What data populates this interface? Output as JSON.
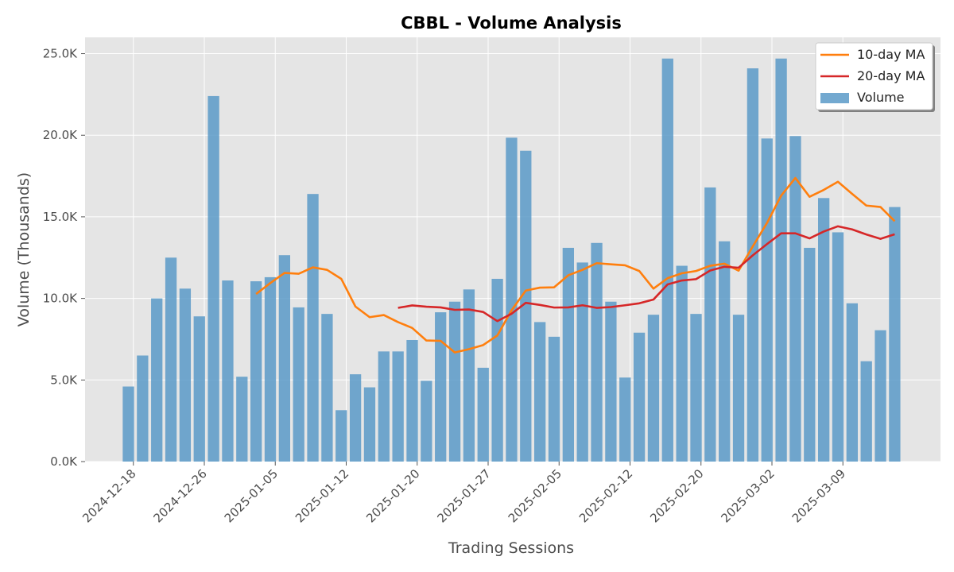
{
  "chart_data": {
    "type": "bar",
    "title": "CBBL - Volume Analysis",
    "xlabel": "Trading Sessions",
    "ylabel": "Volume (Thousands)",
    "ylim": [
      0,
      26000
    ],
    "yticks": [
      0,
      5000,
      10000,
      15000,
      20000,
      25000
    ],
    "ytick_labels": [
      "0.0K",
      "5.0K",
      "10.0K",
      "15.0K",
      "20.0K",
      "25.0K"
    ],
    "grid": true,
    "legend_position": "top-right",
    "xtick_labels": [
      {
        "label": "2024-12-18",
        "index": 0.35
      },
      {
        "label": "2024-12-26",
        "index": 5.35
      },
      {
        "label": "2025-01-05",
        "index": 10.35
      },
      {
        "label": "2025-01-12",
        "index": 15.35
      },
      {
        "label": "2025-01-20",
        "index": 20.35
      },
      {
        "label": "2025-01-27",
        "index": 25.35
      },
      {
        "label": "2025-02-05",
        "index": 30.35
      },
      {
        "label": "2025-02-12",
        "index": 35.35
      },
      {
        "label": "2025-02-20",
        "index": 40.35
      },
      {
        "label": "2025-03-02",
        "index": 45.35
      },
      {
        "label": "2025-03-09",
        "index": 50.35
      }
    ],
    "series": [
      {
        "name": "Volume",
        "kind": "bar",
        "color": "#5a9ac8",
        "values": [
          4600,
          6500,
          10000,
          12500,
          10600,
          8900,
          22400,
          11100,
          5200,
          11050,
          11300,
          12650,
          9450,
          16400,
          9050,
          3150,
          5350,
          4550,
          6750,
          6750,
          7450,
          4950,
          9150,
          9800,
          10550,
          5750,
          11200,
          19850,
          19050,
          8550,
          7650,
          13100,
          12200,
          13400,
          9800,
          5150,
          7900,
          9000,
          24700,
          12000,
          9050,
          16800,
          13500,
          9000,
          24100,
          19800,
          24700,
          19950,
          13100,
          16150,
          14050,
          9700,
          6150,
          8050,
          15600
        ]
      },
      {
        "name": "10-day MA",
        "kind": "line",
        "color": "#ff7f0e",
        "values": [
          null,
          null,
          null,
          null,
          null,
          null,
          null,
          null,
          null,
          10270,
          10940,
          11560,
          11510,
          11900,
          11750,
          11200,
          9500,
          8850,
          8980,
          8550,
          8190,
          7420,
          7400,
          6690,
          6890,
          7140,
          7730,
          9270,
          10480,
          10660,
          10680,
          11420,
          11750,
          12160,
          12090,
          12030,
          11680,
          10600,
          11240,
          11540,
          11680,
          12000,
          12130,
          11700,
          13190,
          14620,
          16300,
          17380,
          16230,
          16650,
          17150,
          16410,
          15690,
          15600,
          14730
        ]
      },
      {
        "name": "20-day MA",
        "kind": "line",
        "color": "#d62728",
        "values": [
          null,
          null,
          null,
          null,
          null,
          null,
          null,
          null,
          null,
          null,
          null,
          null,
          null,
          null,
          null,
          null,
          null,
          null,
          null,
          9420,
          9570,
          9490,
          9450,
          9300,
          9320,
          9170,
          8610,
          9060,
          9730,
          9600,
          9440,
          9450,
          9580,
          9420,
          9470,
          9580,
          9700,
          9930,
          10860,
          11100,
          11180,
          11710,
          11940,
          11880,
          12640,
          13330,
          13990,
          13990,
          13680,
          14100,
          14420,
          14230,
          13920,
          13650,
          13930
        ]
      }
    ]
  }
}
